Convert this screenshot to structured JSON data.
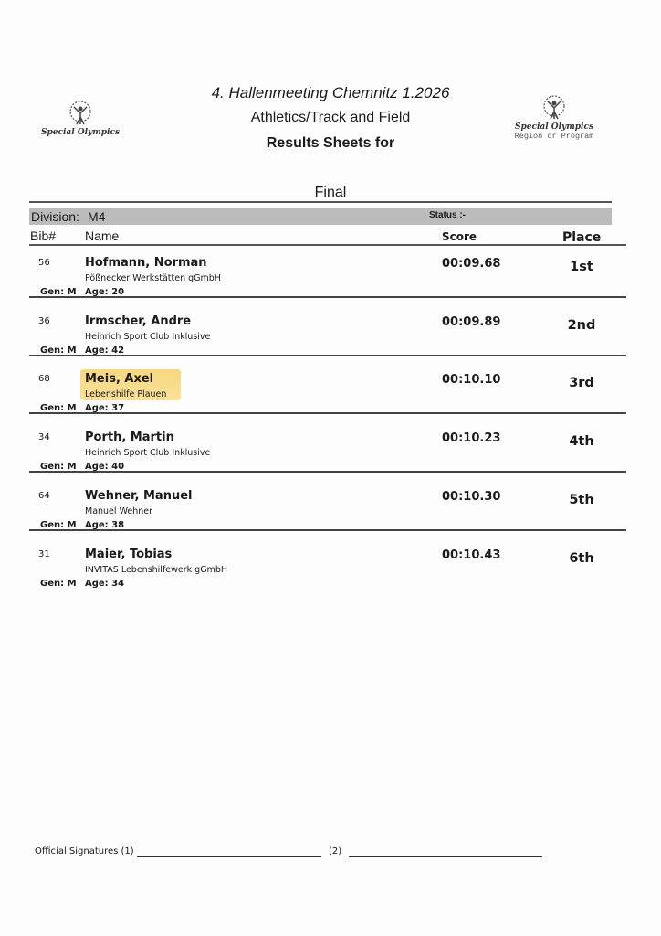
{
  "header": {
    "line1": "4. Hallenmeeting Chemnitz 1.2026",
    "line2": "Athletics/Track and Field",
    "line3": "Results Sheets for"
  },
  "logos": {
    "left": {
      "name": "Special Olympics"
    },
    "right": {
      "name": "Special Olympics",
      "sub": "Region or Program"
    }
  },
  "round": "Final",
  "division": {
    "label": "Division:",
    "value": "M4",
    "status": "Status :-"
  },
  "columns": {
    "bib": "Bib#",
    "name": "Name",
    "score": "Score",
    "place": "Place"
  },
  "highlight_color": "#f7d16a",
  "results": [
    {
      "bib": "56",
      "name": "Hofmann, Norman",
      "club": "Pößnecker Werkstätten gGmbH",
      "gen": "Gen: M",
      "age": "Age: 20",
      "score": "00:09.68",
      "place": "1st"
    },
    {
      "bib": "36",
      "name": "Irmscher, Andre",
      "club": "Heinrich Sport Club Inklusive",
      "gen": "Gen: M",
      "age": "Age: 42",
      "score": "00:09.89",
      "place": "2nd"
    },
    {
      "bib": "68",
      "name": "Meis, Axel",
      "club": "Lebenshilfe Plauen",
      "gen": "Gen: M",
      "age": "Age: 37",
      "score": "00:10.10",
      "place": "3rd",
      "highlighted": true
    },
    {
      "bib": "34",
      "name": "Porth, Martin",
      "club": "Heinrich Sport Club Inklusive",
      "gen": "Gen: M",
      "age": "Age: 40",
      "score": "00:10.23",
      "place": "4th"
    },
    {
      "bib": "64",
      "name": "Wehner, Manuel",
      "club": "Manuel Wehner",
      "gen": "Gen: M",
      "age": "Age: 38",
      "score": "00:10.30",
      "place": "5th"
    },
    {
      "bib": "31",
      "name": "Maier, Tobias",
      "club": "INVITAS Lebenshilfewerk gGmbH",
      "gen": "Gen: M",
      "age": "Age: 34",
      "score": "00:10.43",
      "place": "6th"
    }
  ],
  "signatures": {
    "label1": "Official Signatures (1)",
    "label2": "(2)"
  }
}
